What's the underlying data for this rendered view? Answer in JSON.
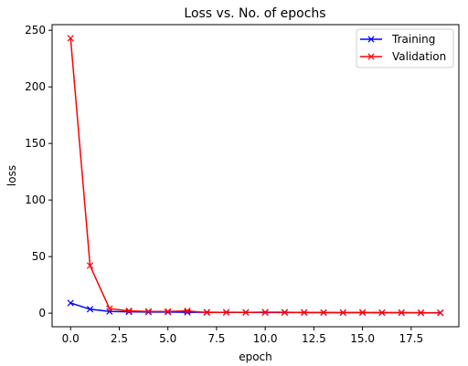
{
  "chart_data": {
    "type": "line",
    "title": "Loss vs. No. of epochs",
    "xlabel": "epoch",
    "ylabel": "loss",
    "xlim": [
      -0.95,
      19.95
    ],
    "ylim": [
      -12,
      255
    ],
    "xticks": [
      0,
      2.5,
      5,
      7.5,
      10,
      12.5,
      15,
      17.5
    ],
    "xtick_labels": [
      "0.0",
      "2.5",
      "5.0",
      "7.5",
      "10.0",
      "12.5",
      "15.0",
      "17.5"
    ],
    "yticks": [
      0,
      50,
      100,
      150,
      200,
      250
    ],
    "ytick_labels": [
      "0",
      "50",
      "100",
      "150",
      "200",
      "250"
    ],
    "grid": false,
    "legend_position": "top-right",
    "series": [
      {
        "name": "Training",
        "color": "#0000ff",
        "marker": "x",
        "x": [
          0,
          1,
          2,
          3,
          4,
          5,
          6,
          7,
          8,
          9,
          10,
          11,
          12,
          13,
          14,
          15,
          16,
          17,
          18,
          19
        ],
        "values": [
          9,
          3.5,
          1.5,
          1.2,
          1.0,
          1.0,
          0.8,
          0.8,
          0.7,
          0.7,
          0.6,
          0.6,
          0.6,
          0.5,
          0.5,
          0.5,
          0.5,
          0.5,
          0.4,
          0.4
        ]
      },
      {
        "name": "Validation",
        "color": "#ff0000",
        "marker": "x",
        "x": [
          0,
          1,
          2,
          3,
          4,
          5,
          6,
          7,
          8,
          9,
          10,
          11,
          12,
          13,
          14,
          15,
          16,
          17,
          18,
          19
        ],
        "values": [
          243,
          42,
          4,
          2,
          1.5,
          1.5,
          2,
          0.5,
          0.8,
          0.7,
          0.9,
          0.8,
          0.6,
          0.6,
          0.5,
          0.6,
          0.4,
          0.4,
          0.3,
          0.2
        ]
      }
    ]
  }
}
